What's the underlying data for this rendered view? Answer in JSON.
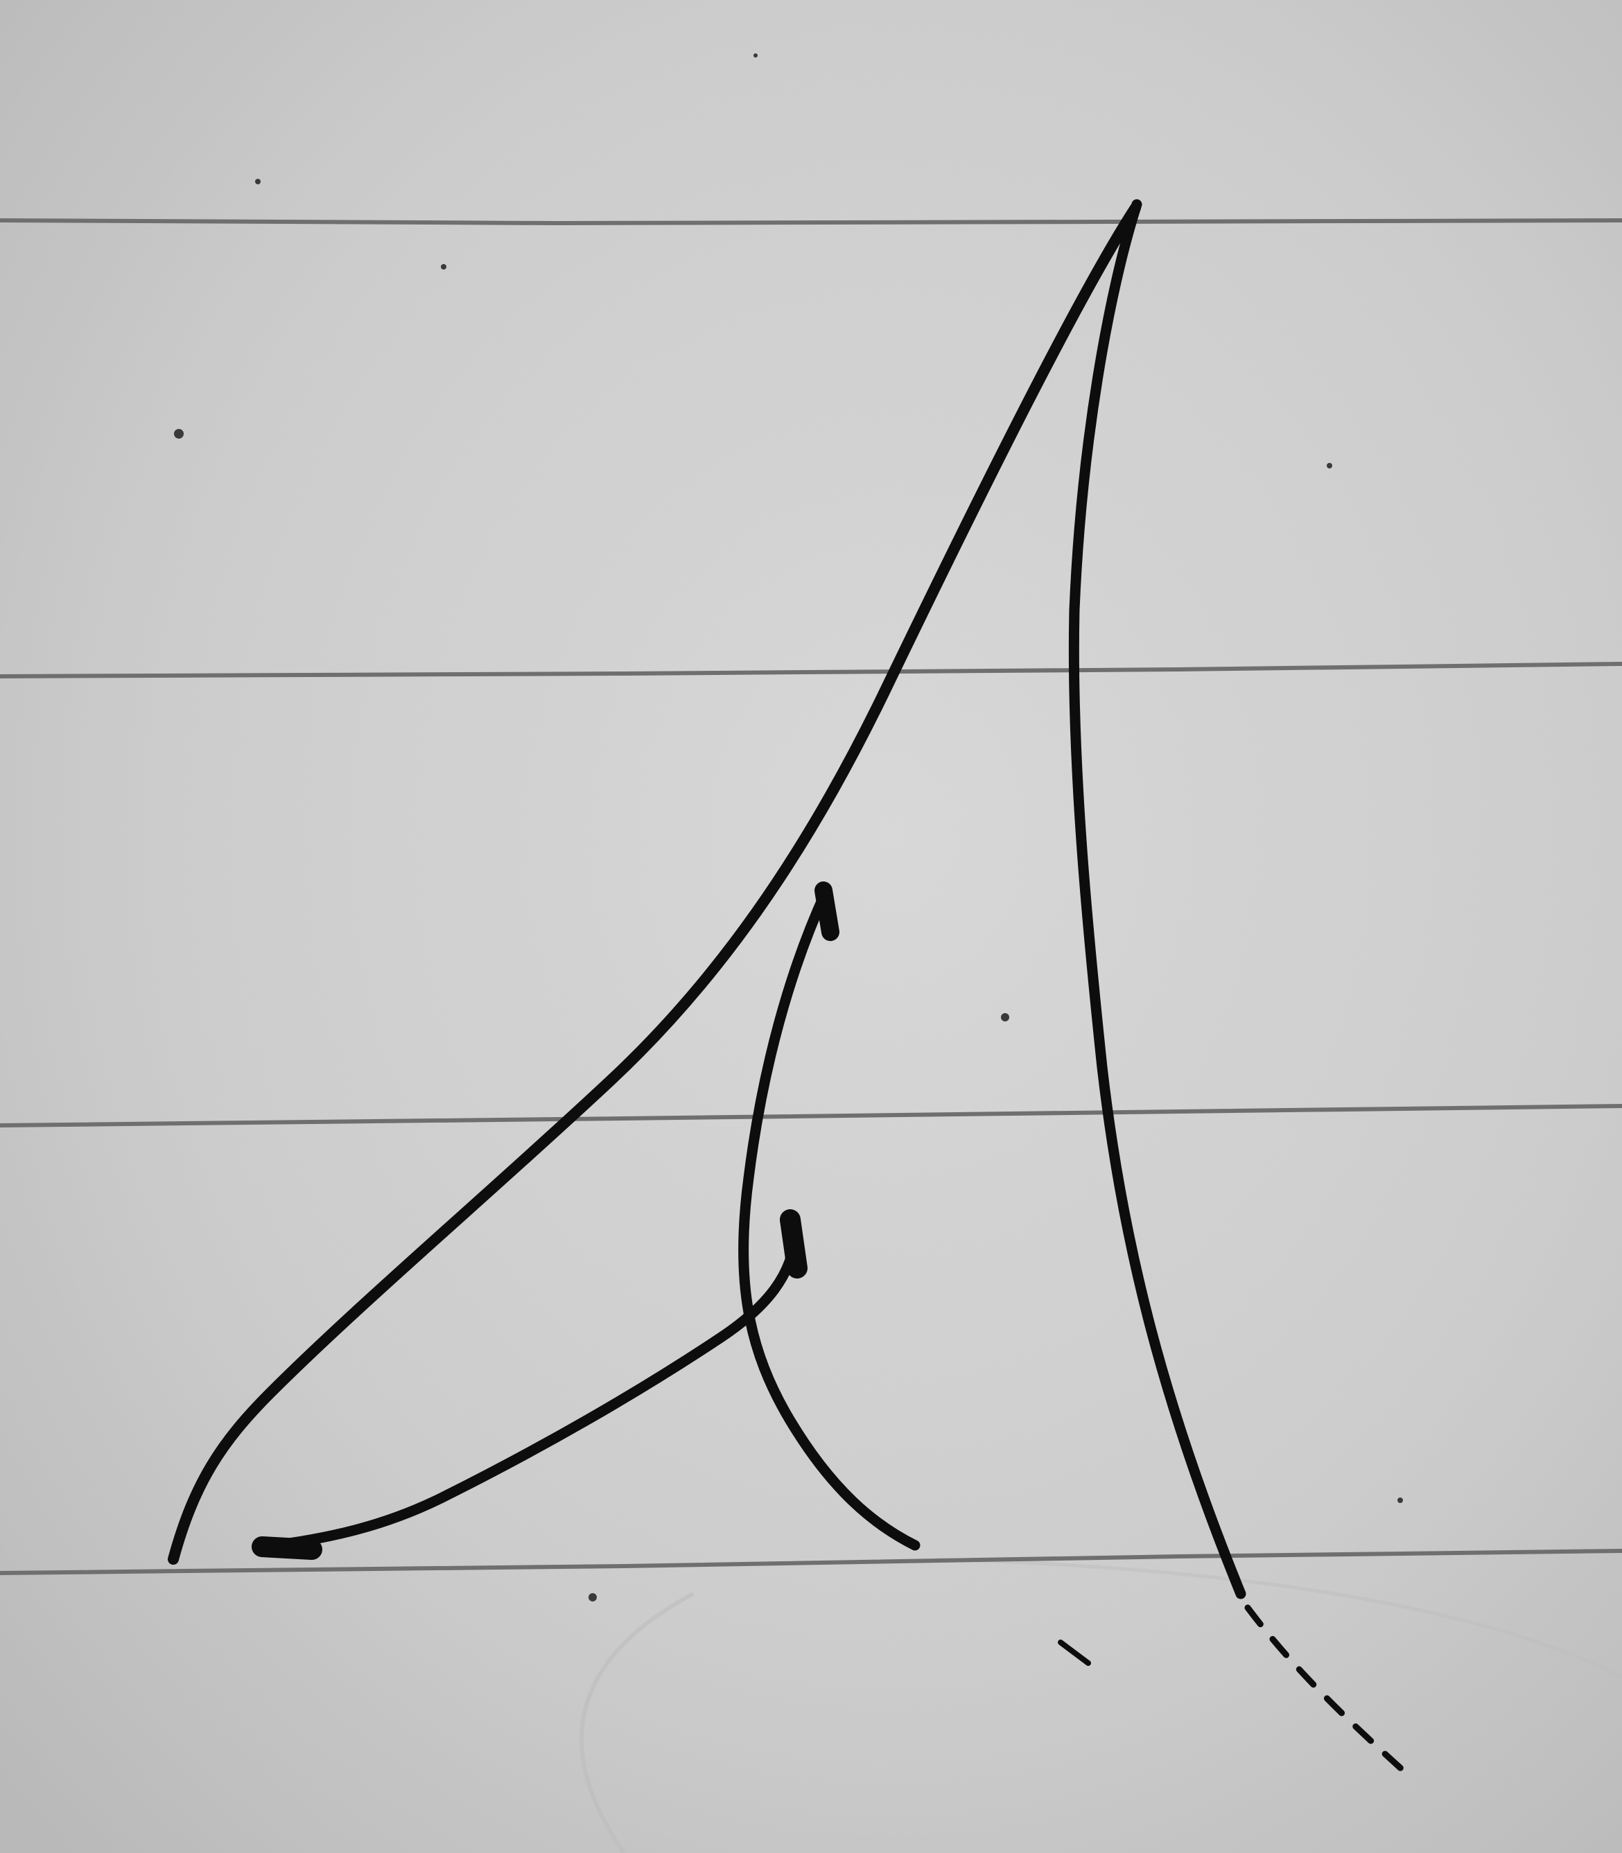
{
  "image": {
    "subject": "",
    "colors": {
      "paper": "#cfcfcf",
      "paper_light": "#dcdcdc",
      "paper_shadow": "#bdbdbd",
      "rule_line": "#6f6f6f",
      "ink": "#0d0d0d"
    },
    "rule_lines": 4
  }
}
